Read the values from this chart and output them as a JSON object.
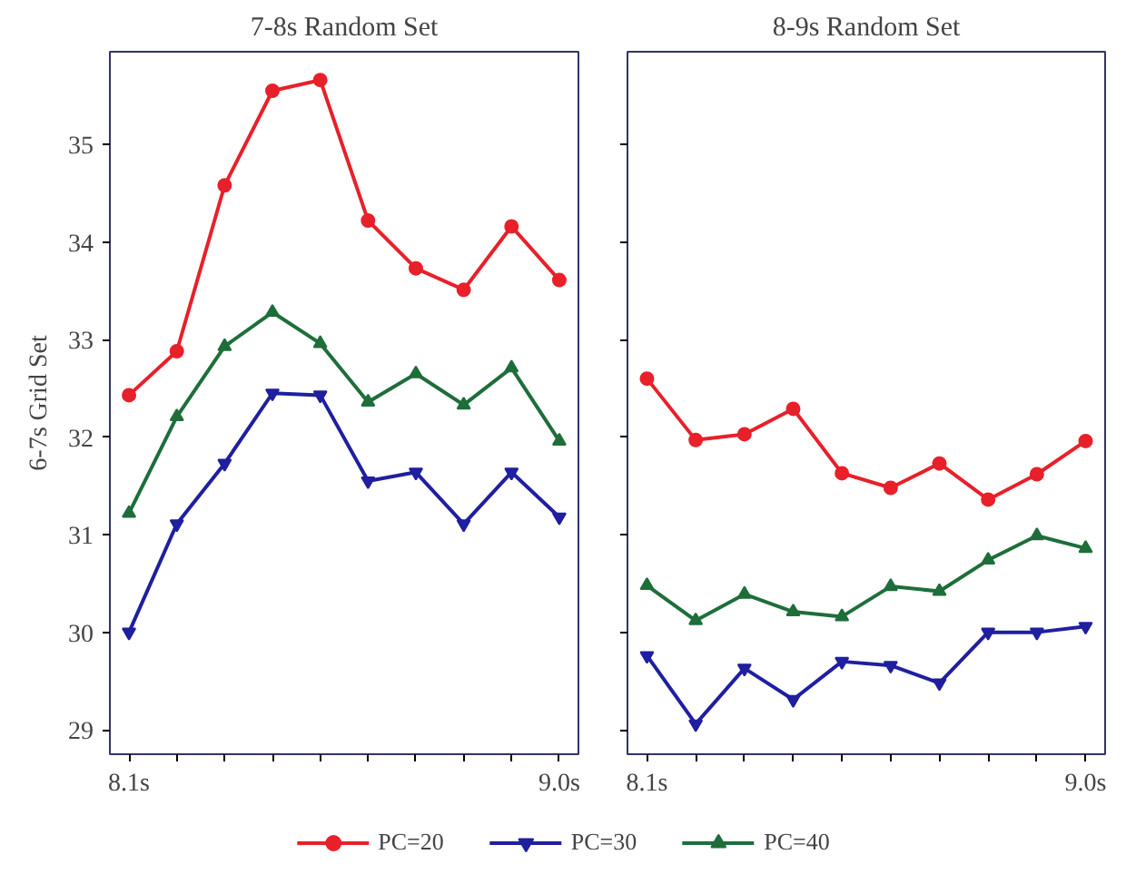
{
  "chart_data": [
    {
      "type": "line",
      "title": "7-8s Random Set",
      "ylabel": "6-7s Grid Set",
      "x": [
        8.1,
        8.2,
        8.3,
        8.4,
        8.5,
        8.6,
        8.7,
        8.8,
        8.9,
        9.0
      ],
      "xlim": [
        8.06,
        9.04
      ],
      "ylim": [
        28.75,
        35.95
      ],
      "xticks": [
        {
          "value": 8.1,
          "label": "8.1s"
        },
        {
          "value": 8.2,
          "label": null
        },
        {
          "value": 8.3,
          "label": null
        },
        {
          "value": 8.4,
          "label": null
        },
        {
          "value": 8.5,
          "label": null
        },
        {
          "value": 8.6,
          "label": null
        },
        {
          "value": 8.7,
          "label": null
        },
        {
          "value": 8.8,
          "label": null
        },
        {
          "value": 8.9,
          "label": null
        },
        {
          "value": 9.0,
          "label": "9.0s"
        }
      ],
      "yticks": [
        29,
        30,
        31,
        32,
        33,
        34,
        35
      ],
      "grid": false,
      "legend": "bottom",
      "line_style": "solid",
      "series": [
        {
          "name": "PC=20",
          "color": "#e8202a",
          "marker": "circle",
          "values": [
            32.43,
            32.88,
            34.58,
            35.55,
            35.66,
            34.22,
            33.73,
            33.51,
            34.16,
            33.61
          ]
        },
        {
          "name": "PC=30",
          "color": "#1f1fa0",
          "marker": "triangle_down",
          "values": [
            30.0,
            31.11,
            31.73,
            32.45,
            32.43,
            31.55,
            31.64,
            31.11,
            31.64,
            31.18
          ]
        },
        {
          "name": "PC=40",
          "color": "#1e6e3a",
          "marker": "triangle",
          "values": [
            31.22,
            32.21,
            32.93,
            33.28,
            32.96,
            32.36,
            32.65,
            32.33,
            32.71,
            31.96
          ]
        }
      ]
    },
    {
      "type": "line",
      "title": "8-9s Random Set",
      "x": [
        8.1,
        8.2,
        8.3,
        8.4,
        8.5,
        8.6,
        8.7,
        8.8,
        8.9,
        9.0
      ],
      "xlim": [
        8.06,
        9.04
      ],
      "ylim": [
        28.75,
        35.95
      ],
      "xticks": [
        {
          "value": 8.1,
          "label": "8.1s"
        },
        {
          "value": 8.2,
          "label": null
        },
        {
          "value": 8.3,
          "label": null
        },
        {
          "value": 8.4,
          "label": null
        },
        {
          "value": 8.5,
          "label": null
        },
        {
          "value": 8.6,
          "label": null
        },
        {
          "value": 8.7,
          "label": null
        },
        {
          "value": 8.8,
          "label": null
        },
        {
          "value": 8.9,
          "label": null
        },
        {
          "value": 9.0,
          "label": "9.0s"
        }
      ],
      "yticks": [
        29,
        30,
        31,
        32,
        33,
        34,
        35
      ],
      "tick_labels": "x",
      "grid": false,
      "line_style": "solid",
      "series": [
        {
          "color": "#e8202a",
          "marker": "circle",
          "values": [
            32.6,
            31.97,
            32.03,
            32.29,
            31.63,
            31.48,
            31.73,
            31.36,
            31.62,
            31.96
          ]
        },
        {
          "color": "#1f1fa0",
          "marker": "triangle_down",
          "values": [
            29.76,
            29.06,
            29.63,
            29.31,
            29.7,
            29.66,
            29.48,
            30.0,
            30.0,
            30.06
          ]
        },
        {
          "color": "#1e6e3a",
          "marker": "triangle",
          "values": [
            30.48,
            30.12,
            30.39,
            30.21,
            30.16,
            30.47,
            30.42,
            30.74,
            30.99,
            30.86
          ]
        }
      ]
    }
  ]
}
